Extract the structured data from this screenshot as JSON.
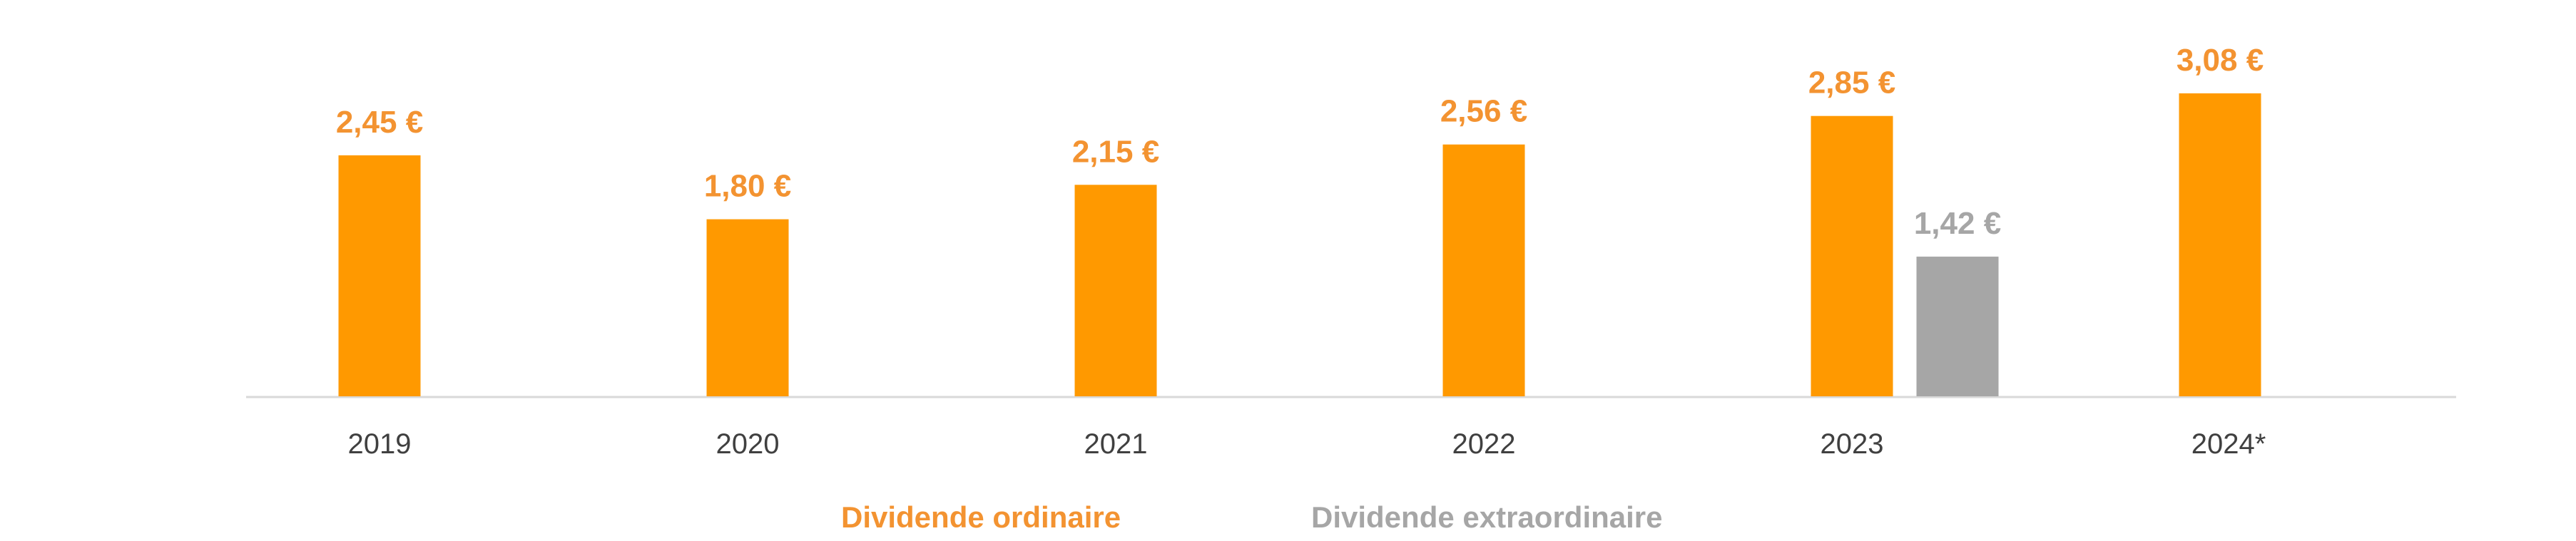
{
  "chart_data": {
    "type": "bar",
    "categories": [
      "2019",
      "2020",
      "2021",
      "2022",
      "2023",
      "2024*"
    ],
    "series": [
      {
        "name": "Dividende ordinaire",
        "color": "#FF9900",
        "label_color": "#F39331",
        "values": [
          2.45,
          1.8,
          2.15,
          2.56,
          2.85,
          3.08
        ],
        "labels": [
          "2,45 €",
          "1,80 €",
          "2,15 €",
          "2,56 €",
          "2,85 €",
          "3,08 €"
        ]
      },
      {
        "name": "Dividende extraordinaire",
        "color": "#A6A6A6",
        "label_color": "#A6A6A6",
        "values": [
          null,
          null,
          null,
          null,
          1.42,
          null
        ],
        "labels": [
          "",
          "",
          "",
          "",
          "1,42 €",
          ""
        ]
      }
    ],
    "title": "",
    "xlabel": "",
    "ylabel": "",
    "ylim": [
      0,
      3.5
    ],
    "grid": false,
    "legend": "bottom-center"
  }
}
